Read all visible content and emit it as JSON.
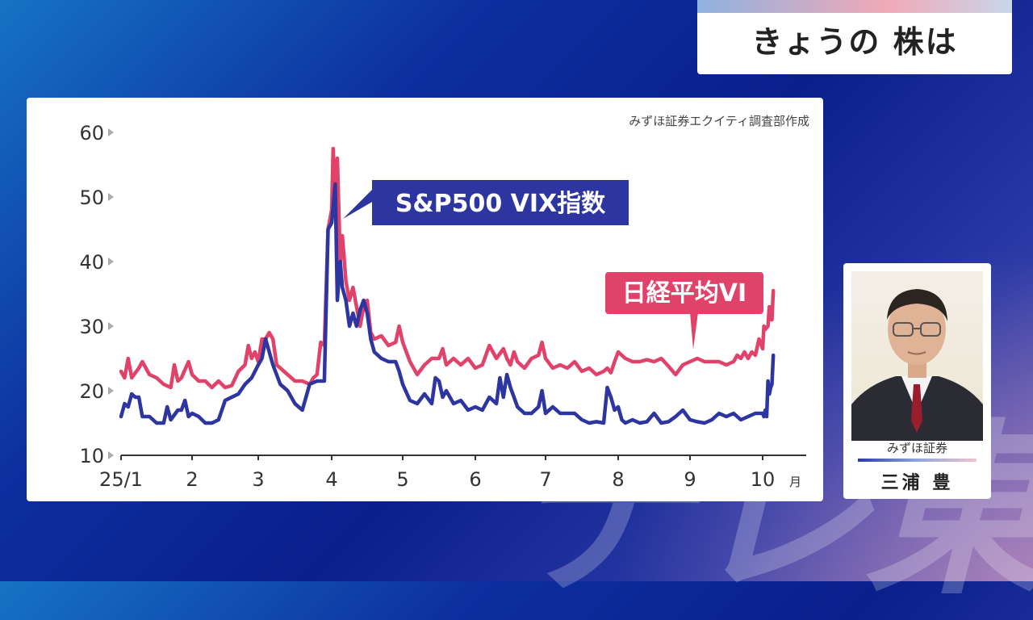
{
  "header": {
    "title": "きょうの 株は"
  },
  "watermark": "テレ東",
  "source": "みずほ証券エクイティ調査部作成",
  "person": {
    "affiliation": "みずほ証券",
    "name": "三浦 豊"
  },
  "chart_data": {
    "type": "line",
    "y_ticks": [
      "60",
      "50",
      "40",
      "30",
      "20",
      "10"
    ],
    "x_ticks": [
      "25/1",
      "2",
      "3",
      "4",
      "5",
      "6",
      "7",
      "8",
      "9",
      "10"
    ],
    "x_unit": "月",
    "ylim": [
      10,
      60
    ],
    "xlim": [
      1,
      10.75
    ],
    "grid": false,
    "series": [
      {
        "name": "日経平均VI",
        "color": "#e0426a",
        "points": [
          [
            1.0,
            23
          ],
          [
            1.05,
            22
          ],
          [
            1.1,
            25
          ],
          [
            1.15,
            22
          ],
          [
            1.25,
            23.5
          ],
          [
            1.3,
            24.5
          ],
          [
            1.4,
            22.5
          ],
          [
            1.5,
            22
          ],
          [
            1.6,
            21
          ],
          [
            1.7,
            20.5
          ],
          [
            1.75,
            24
          ],
          [
            1.8,
            21.5
          ],
          [
            1.85,
            22
          ],
          [
            1.95,
            24.5
          ],
          [
            2.0,
            22.5
          ],
          [
            2.1,
            21.5
          ],
          [
            2.2,
            21.5
          ],
          [
            2.3,
            20.5
          ],
          [
            2.4,
            21.5
          ],
          [
            2.5,
            20.5
          ],
          [
            2.6,
            20.8
          ],
          [
            2.7,
            23
          ],
          [
            2.8,
            24
          ],
          [
            2.85,
            27
          ],
          [
            2.9,
            25
          ],
          [
            2.95,
            26
          ],
          [
            3.0,
            24.5
          ],
          [
            3.05,
            28
          ],
          [
            3.1,
            28
          ],
          [
            3.15,
            29
          ],
          [
            3.2,
            28
          ],
          [
            3.25,
            24
          ],
          [
            3.35,
            23
          ],
          [
            3.45,
            22
          ],
          [
            3.5,
            21.5
          ],
          [
            3.6,
            21.5
          ],
          [
            3.7,
            21
          ],
          [
            3.75,
            22
          ],
          [
            3.8,
            22.5
          ],
          [
            3.85,
            27.5
          ],
          [
            3.9,
            27
          ],
          [
            3.95,
            45
          ],
          [
            4.0,
            48
          ],
          [
            4.02,
            57.5
          ],
          [
            4.05,
            50
          ],
          [
            4.08,
            56
          ],
          [
            4.12,
            40
          ],
          [
            4.15,
            44
          ],
          [
            4.2,
            37
          ],
          [
            4.25,
            34
          ],
          [
            4.3,
            36
          ],
          [
            4.4,
            30
          ],
          [
            4.45,
            33
          ],
          [
            4.5,
            34
          ],
          [
            4.55,
            29
          ],
          [
            4.6,
            28
          ],
          [
            4.7,
            28.5
          ],
          [
            4.8,
            27
          ],
          [
            4.9,
            27.5
          ],
          [
            4.95,
            30
          ],
          [
            5.0,
            27.5
          ],
          [
            5.1,
            24.5
          ],
          [
            5.2,
            22.5
          ],
          [
            5.3,
            24
          ],
          [
            5.4,
            25
          ],
          [
            5.5,
            25
          ],
          [
            5.55,
            26.5
          ],
          [
            5.6,
            24
          ],
          [
            5.7,
            25
          ],
          [
            5.8,
            24
          ],
          [
            5.9,
            25
          ],
          [
            6.0,
            23.5
          ],
          [
            6.1,
            24
          ],
          [
            6.2,
            27
          ],
          [
            6.3,
            25
          ],
          [
            6.4,
            26.5
          ],
          [
            6.45,
            25
          ],
          [
            6.5,
            24
          ],
          [
            6.55,
            26
          ],
          [
            6.6,
            24.5
          ],
          [
            6.7,
            23.5
          ],
          [
            6.8,
            25
          ],
          [
            6.9,
            25.5
          ],
          [
            6.95,
            27.5
          ],
          [
            7.0,
            25
          ],
          [
            7.1,
            23.5
          ],
          [
            7.2,
            24
          ],
          [
            7.3,
            23.5
          ],
          [
            7.4,
            24.5
          ],
          [
            7.5,
            23
          ],
          [
            7.6,
            23.5
          ],
          [
            7.7,
            22.5
          ],
          [
            7.8,
            23
          ],
          [
            7.85,
            23.5
          ],
          [
            7.9,
            22.8
          ],
          [
            7.95,
            24.5
          ],
          [
            8.0,
            26
          ],
          [
            8.1,
            25
          ],
          [
            8.2,
            24.5
          ],
          [
            8.3,
            24.5
          ],
          [
            8.4,
            24.8
          ],
          [
            8.5,
            24.5
          ],
          [
            8.6,
            25
          ],
          [
            8.7,
            23.8
          ],
          [
            8.8,
            22.5
          ],
          [
            8.9,
            24
          ],
          [
            9.0,
            24.5
          ],
          [
            9.1,
            25
          ],
          [
            9.2,
            24.5
          ],
          [
            9.3,
            24.5
          ],
          [
            9.4,
            24.5
          ],
          [
            9.5,
            24
          ],
          [
            9.6,
            24.5
          ],
          [
            9.65,
            25.5
          ],
          [
            9.7,
            25
          ],
          [
            9.75,
            26
          ],
          [
            9.8,
            25
          ],
          [
            9.85,
            26
          ],
          [
            9.9,
            25.5
          ],
          [
            9.95,
            28
          ],
          [
            10.0,
            26.5
          ],
          [
            10.05,
            30
          ],
          [
            10.1,
            29.5
          ],
          [
            10.2,
            30
          ],
          [
            10.25,
            33
          ],
          [
            10.3,
            31
          ],
          [
            10.35,
            31
          ],
          [
            10.4,
            35.5
          ]
        ]
      },
      {
        "name": "S&P500 VIX指数",
        "color": "#2c35a0",
        "points": [
          [
            1.0,
            16
          ],
          [
            1.05,
            18
          ],
          [
            1.1,
            17.5
          ],
          [
            1.15,
            19.5
          ],
          [
            1.2,
            19
          ],
          [
            1.25,
            19
          ],
          [
            1.3,
            16
          ],
          [
            1.4,
            16
          ],
          [
            1.5,
            15
          ],
          [
            1.6,
            15
          ],
          [
            1.65,
            17.5
          ],
          [
            1.7,
            15.5
          ],
          [
            1.8,
            17
          ],
          [
            1.85,
            17
          ],
          [
            1.9,
            18.5
          ],
          [
            1.95,
            16
          ],
          [
            2.0,
            16.5
          ],
          [
            2.1,
            16
          ],
          [
            2.2,
            15
          ],
          [
            2.3,
            15
          ],
          [
            2.4,
            15.5
          ],
          [
            2.5,
            18.5
          ],
          [
            2.6,
            19
          ],
          [
            2.7,
            19.5
          ],
          [
            2.8,
            21
          ],
          [
            2.9,
            22
          ],
          [
            2.95,
            23
          ],
          [
            3.0,
            24
          ],
          [
            3.05,
            25
          ],
          [
            3.1,
            28
          ],
          [
            3.2,
            24
          ],
          [
            3.3,
            21
          ],
          [
            3.4,
            20
          ],
          [
            3.5,
            18
          ],
          [
            3.6,
            17
          ],
          [
            3.7,
            21
          ],
          [
            3.8,
            21.5
          ],
          [
            3.9,
            21.5
          ],
          [
            3.95,
            45
          ],
          [
            4.0,
            46
          ],
          [
            4.05,
            52
          ],
          [
            4.08,
            34
          ],
          [
            4.12,
            40
          ],
          [
            4.15,
            36
          ],
          [
            4.2,
            34
          ],
          [
            4.25,
            30
          ],
          [
            4.3,
            32
          ],
          [
            4.35,
            30
          ],
          [
            4.4,
            32.5
          ],
          [
            4.45,
            34
          ],
          [
            4.5,
            32
          ],
          [
            4.55,
            28
          ],
          [
            4.6,
            26
          ],
          [
            4.7,
            25
          ],
          [
            4.8,
            24.5
          ],
          [
            4.9,
            24.5
          ],
          [
            4.95,
            23
          ],
          [
            5.0,
            21
          ],
          [
            5.1,
            18.5
          ],
          [
            5.2,
            18
          ],
          [
            5.3,
            19.5
          ],
          [
            5.4,
            18
          ],
          [
            5.45,
            22
          ],
          [
            5.5,
            21.5
          ],
          [
            5.55,
            19
          ],
          [
            5.6,
            20
          ],
          [
            5.7,
            18
          ],
          [
            5.8,
            18.5
          ],
          [
            5.9,
            17
          ],
          [
            6.0,
            17.5
          ],
          [
            6.1,
            17
          ],
          [
            6.2,
            19
          ],
          [
            6.3,
            18
          ],
          [
            6.35,
            22
          ],
          [
            6.4,
            19
          ],
          [
            6.45,
            22.5
          ],
          [
            6.5,
            20.5
          ],
          [
            6.55,
            19
          ],
          [
            6.6,
            17.5
          ],
          [
            6.7,
            16.5
          ],
          [
            6.8,
            16.5
          ],
          [
            6.9,
            17.5
          ],
          [
            6.95,
            20
          ],
          [
            7.0,
            16.5
          ],
          [
            7.1,
            17.5
          ],
          [
            7.2,
            16.5
          ],
          [
            7.3,
            16.5
          ],
          [
            7.4,
            16.5
          ],
          [
            7.5,
            15.5
          ],
          [
            7.6,
            15
          ],
          [
            7.7,
            15.2
          ],
          [
            7.8,
            15
          ],
          [
            7.85,
            20.5
          ],
          [
            7.9,
            19
          ],
          [
            7.95,
            17
          ],
          [
            8.0,
            17.5
          ],
          [
            8.05,
            15.5
          ],
          [
            8.1,
            15
          ],
          [
            8.2,
            15.5
          ],
          [
            8.3,
            15
          ],
          [
            8.4,
            15.2
          ],
          [
            8.5,
            16.5
          ],
          [
            8.6,
            15
          ],
          [
            8.7,
            15.2
          ],
          [
            8.8,
            16
          ],
          [
            8.9,
            17
          ],
          [
            9.0,
            15.5
          ],
          [
            9.1,
            15.2
          ],
          [
            9.2,
            15
          ],
          [
            9.3,
            15.5
          ],
          [
            9.4,
            16.5
          ],
          [
            9.5,
            16
          ],
          [
            9.6,
            16.5
          ],
          [
            9.7,
            15.5
          ],
          [
            9.8,
            16
          ],
          [
            9.9,
            16.5
          ],
          [
            10.0,
            16.5
          ],
          [
            10.05,
            16
          ],
          [
            10.1,
            17
          ],
          [
            10.15,
            16
          ],
          [
            10.2,
            21.5
          ],
          [
            10.25,
            19.5
          ],
          [
            10.3,
            20.5
          ],
          [
            10.35,
            21
          ],
          [
            10.4,
            25.5
          ]
        ]
      }
    ]
  }
}
